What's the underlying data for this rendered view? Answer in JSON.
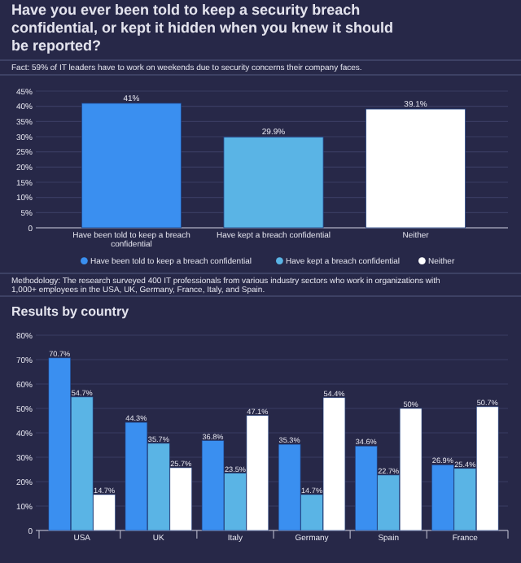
{
  "chart_data": [
    {
      "type": "bar",
      "title": "Have you ever been told to keep a security breach confidential, or kept it hidden when you knew it should be reported?",
      "annotations": [
        "Fact: 59% of IT leaders have to work on weekends due to security concerns their company faces.",
        "Methodology: The research surveyed 400 IT professionals from various industry sectors who work in organizations with 1,000+ employees in the USA, UK, Germany, France, Italy, and Spain."
      ],
      "categories": [
        "Have been told to keep a breach confidential",
        "Have kept a breach confidential",
        "Neither"
      ],
      "series": [
        {
          "name": "Have been told to keep a breach confidential",
          "color": "#3a8ff0",
          "values": [
            41,
            null,
            null
          ],
          "value_labels": [
            "41%",
            null,
            null
          ]
        },
        {
          "name": "Have kept a breach confidential",
          "color": "#5ab4e5",
          "values": [
            null,
            29.9,
            null
          ],
          "value_labels": [
            null,
            "29.9%",
            null
          ]
        },
        {
          "name": "Neither",
          "color": "#ffffff",
          "values": [
            null,
            null,
            39.1
          ],
          "value_labels": [
            null,
            null,
            "39.1%"
          ]
        }
      ],
      "stacked": true,
      "ylim": [
        0,
        45
      ],
      "yticks": [
        0,
        {
          "value": 5,
          "label": "5%"
        },
        {
          "value": 10,
          "label": "10%"
        },
        {
          "value": 15,
          "label": "15%"
        },
        {
          "value": 20,
          "label": "20%"
        },
        {
          "value": 25,
          "label": "25%"
        },
        {
          "value": 30,
          "label": "30%"
        },
        {
          "value": 35,
          "label": "35%"
        },
        {
          "value": 40,
          "label": "40%"
        },
        {
          "value": 45,
          "label": "45%"
        }
      ],
      "grid": "y",
      "legend": "bottom"
    },
    {
      "type": "bar",
      "title": "Results by country",
      "categories": [
        "USA",
        "UK",
        "Italy",
        "Germany",
        "Spain",
        "France"
      ],
      "series": [
        {
          "color": "#3a8ff0",
          "values": [
            70.7,
            44.3,
            36.8,
            35.3,
            34.6,
            26.9
          ],
          "value_labels": [
            "70.7%",
            "44.3%",
            "36.8%",
            "35.3%",
            "34.6%",
            "26.9%"
          ]
        },
        {
          "color": "#5ab4e5",
          "values": [
            54.7,
            35.7,
            23.5,
            14.7,
            22.7,
            25.4
          ],
          "value_labels": [
            "54.7%",
            "35.7%",
            "23.5%",
            "14.7%",
            "22.7%",
            "25.4%"
          ]
        },
        {
          "color": "#ffffff",
          "values": [
            14.7,
            25.7,
            47.1,
            54.4,
            50,
            50.7
          ],
          "value_labels": [
            "14.7%",
            "25.7%",
            "47.1%",
            "54.4%",
            "50%",
            "50.7%"
          ]
        }
      ],
      "ylim": [
        0,
        80
      ],
      "yticks": [
        0,
        {
          "value": 10,
          "label": "10%"
        },
        {
          "value": 20,
          "label": "20%"
        },
        {
          "value": 30,
          "label": "30%"
        },
        {
          "value": 40,
          "label": "40%"
        },
        {
          "value": 50,
          "label": "50%"
        },
        {
          "value": 60,
          "label": "60%"
        },
        {
          "value": 70,
          "label": "70%"
        },
        {
          "value": 80,
          "label": "80%"
        }
      ],
      "grid": "y"
    }
  ]
}
